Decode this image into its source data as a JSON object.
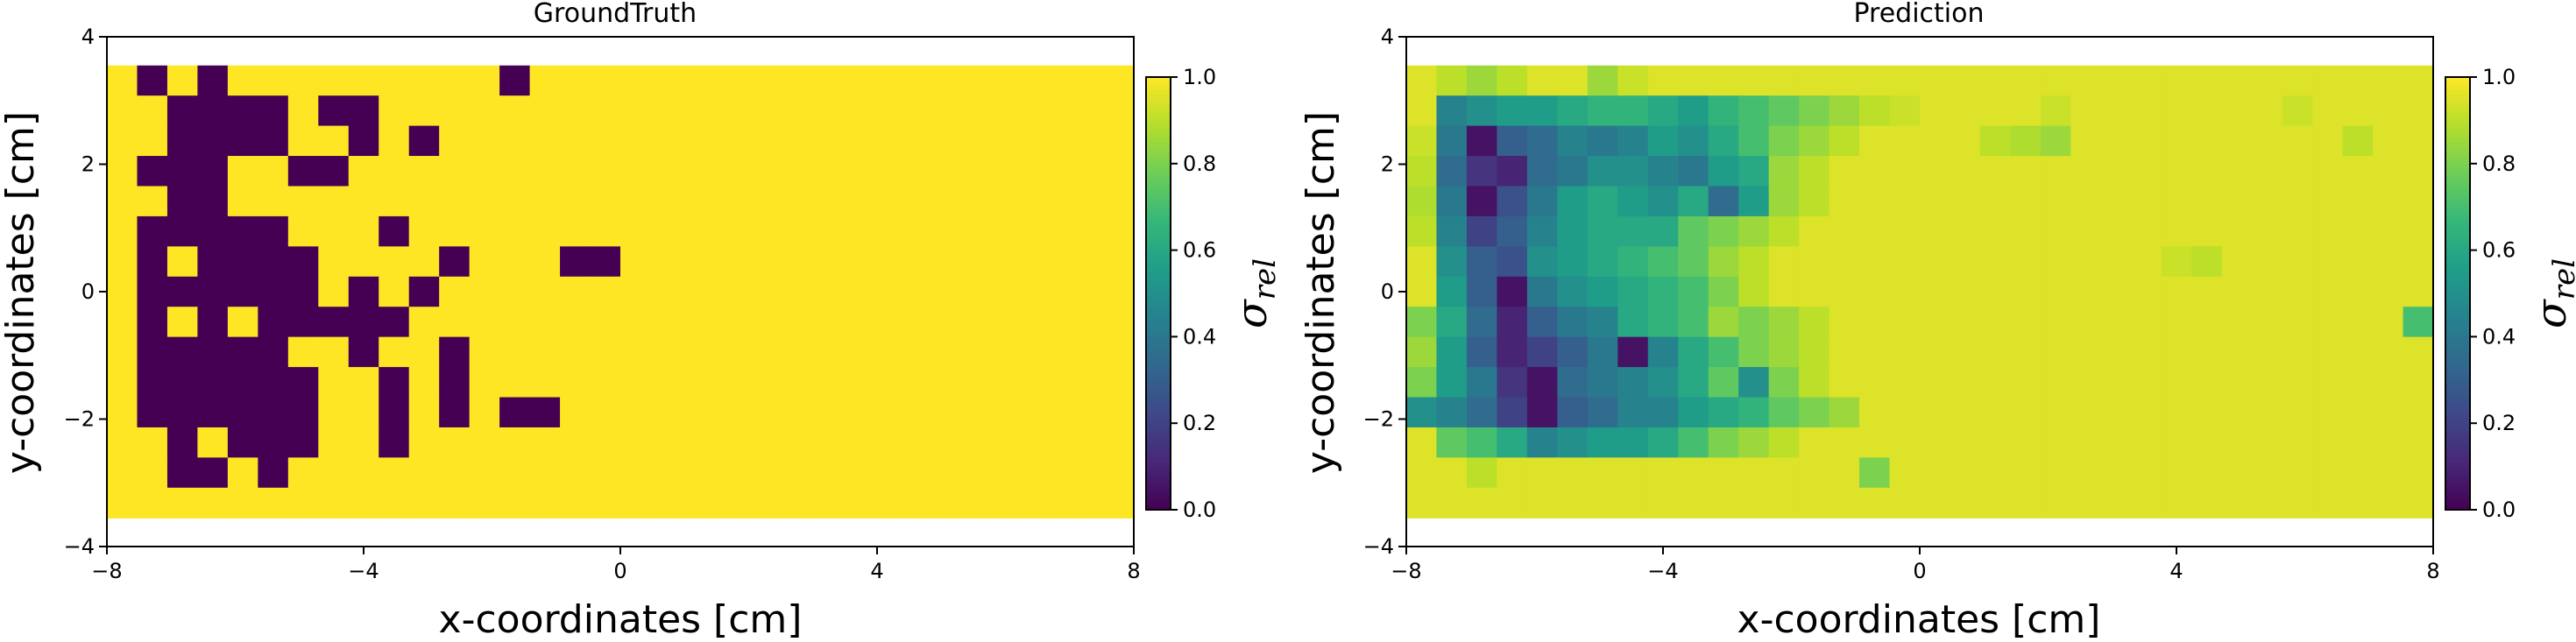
{
  "colors": {
    "viridis": [
      "#440154",
      "#482878",
      "#3e4989",
      "#31688e",
      "#26828e",
      "#1f9e89",
      "#35b779",
      "#6ece58",
      "#b5de2b",
      "#fde725"
    ],
    "axes": "#000000",
    "background": "#ffffff"
  },
  "chart_data": [
    {
      "type": "heatmap",
      "title": "GroundTruth",
      "xlabel": "x-coordinates [cm]",
      "ylabel": "y-coordinates [cm]",
      "xlim": [
        -8,
        8
      ],
      "ylim": [
        -4,
        4
      ],
      "xticks": [
        "−8",
        "−4",
        "0",
        "4",
        "8"
      ],
      "yticks": [
        "4",
        "2",
        "0",
        "−2",
        "−4"
      ],
      "colorbar": {
        "label": "σ",
        "label_sub": "rel",
        "range": [
          0,
          1
        ],
        "ticks": [
          "1.0",
          "0.8",
          "0.6",
          "0.4",
          "0.2",
          "0.0"
        ]
      },
      "grid": {
        "cols": 34,
        "rows": 15,
        "x_range": [
          -8,
          8
        ],
        "y_range": [
          -3.55,
          3.55
        ],
        "default": 1.0,
        "notes": "row 0 = top (y≈3.3), col 0 = left (x≈-7.76)"
      },
      "low_cells": [
        [
          0,
          1
        ],
        [
          0,
          3
        ],
        [
          0,
          13
        ],
        [
          1,
          2
        ],
        [
          1,
          3
        ],
        [
          1,
          4
        ],
        [
          1,
          5
        ],
        [
          1,
          7
        ],
        [
          1,
          8
        ],
        [
          2,
          2
        ],
        [
          2,
          3
        ],
        [
          2,
          4
        ],
        [
          2,
          5
        ],
        [
          2,
          8
        ],
        [
          2,
          10
        ],
        [
          3,
          1
        ],
        [
          3,
          2
        ],
        [
          3,
          3
        ],
        [
          3,
          6
        ],
        [
          3,
          7
        ],
        [
          4,
          2
        ],
        [
          4,
          3
        ],
        [
          5,
          1
        ],
        [
          5,
          2
        ],
        [
          5,
          3
        ],
        [
          5,
          4
        ],
        [
          5,
          5
        ],
        [
          5,
          9
        ],
        [
          6,
          1
        ],
        [
          6,
          3
        ],
        [
          6,
          4
        ],
        [
          6,
          5
        ],
        [
          6,
          6
        ],
        [
          6,
          11
        ],
        [
          6,
          15
        ],
        [
          6,
          16
        ],
        [
          7,
          1
        ],
        [
          7,
          2
        ],
        [
          7,
          3
        ],
        [
          7,
          4
        ],
        [
          7,
          5
        ],
        [
          7,
          6
        ],
        [
          7,
          8
        ],
        [
          7,
          10
        ],
        [
          8,
          1
        ],
        [
          8,
          3
        ],
        [
          8,
          5
        ],
        [
          8,
          6
        ],
        [
          8,
          7
        ],
        [
          8,
          8
        ],
        [
          8,
          9
        ],
        [
          9,
          1
        ],
        [
          9,
          2
        ],
        [
          9,
          3
        ],
        [
          9,
          4
        ],
        [
          9,
          5
        ],
        [
          9,
          8
        ],
        [
          9,
          11
        ],
        [
          10,
          1
        ],
        [
          10,
          2
        ],
        [
          10,
          3
        ],
        [
          10,
          4
        ],
        [
          10,
          5
        ],
        [
          10,
          6
        ],
        [
          10,
          9
        ],
        [
          10,
          11
        ],
        [
          11,
          1
        ],
        [
          11,
          2
        ],
        [
          11,
          3
        ],
        [
          11,
          4
        ],
        [
          11,
          5
        ],
        [
          11,
          6
        ],
        [
          11,
          9
        ],
        [
          11,
          11
        ],
        [
          11,
          13
        ],
        [
          11,
          14
        ],
        [
          12,
          2
        ],
        [
          12,
          4
        ],
        [
          12,
          5
        ],
        [
          12,
          6
        ],
        [
          12,
          9
        ],
        [
          13,
          2
        ],
        [
          13,
          3
        ],
        [
          13,
          5
        ]
      ]
    },
    {
      "type": "heatmap",
      "title": "Prediction",
      "xlabel": "x-coordinates [cm]",
      "ylabel": "y-coordinates [cm]",
      "xlim": [
        -8,
        8
      ],
      "ylim": [
        -4,
        4
      ],
      "xticks": [
        "−8",
        "−4",
        "0",
        "4",
        "8"
      ],
      "yticks": [
        "4",
        "2",
        "0",
        "−2",
        "−4"
      ],
      "colorbar": {
        "label": "σ",
        "label_sub": "rel",
        "range": [
          0,
          1
        ],
        "ticks": [
          "1.0",
          "0.8",
          "0.6",
          "0.4",
          "0.2",
          "0.0"
        ]
      },
      "grid": {
        "cols": 34,
        "rows": 15,
        "x_range": [
          -8,
          8
        ],
        "y_range": [
          -3.55,
          3.55
        ],
        "notes": "row 0 = top (y≈3.3), col 0 = left (x≈-7.76); values are approximate"
      },
      "values": [
        [
          0.95,
          0.9,
          0.85,
          0.9,
          0.95,
          0.95,
          0.85,
          0.92,
          0.95,
          0.95,
          0.95,
          0.95,
          0.95,
          0.95,
          0.95,
          0.95,
          0.95,
          0.95,
          0.95,
          0.95,
          0.95,
          0.95,
          0.95,
          0.95,
          0.95,
          0.95,
          0.95,
          0.95,
          0.95,
          0.95,
          0.95,
          0.95,
          0.95,
          0.95
        ],
        [
          0.95,
          0.45,
          0.5,
          0.55,
          0.55,
          0.6,
          0.65,
          0.65,
          0.6,
          0.55,
          0.65,
          0.7,
          0.75,
          0.8,
          0.85,
          0.9,
          0.92,
          0.95,
          0.95,
          0.95,
          0.95,
          0.92,
          0.95,
          0.95,
          0.95,
          0.95,
          0.95,
          0.95,
          0.95,
          0.92,
          0.95,
          0.95,
          0.95,
          0.95
        ],
        [
          0.92,
          0.4,
          0.05,
          0.3,
          0.35,
          0.45,
          0.4,
          0.45,
          0.55,
          0.5,
          0.6,
          0.7,
          0.8,
          0.85,
          0.9,
          0.95,
          0.95,
          0.95,
          0.95,
          0.9,
          0.88,
          0.85,
          0.95,
          0.95,
          0.95,
          0.95,
          0.95,
          0.95,
          0.95,
          0.95,
          0.95,
          0.9,
          0.95,
          0.95
        ],
        [
          0.9,
          0.35,
          0.15,
          0.1,
          0.35,
          0.4,
          0.5,
          0.5,
          0.45,
          0.4,
          0.55,
          0.6,
          0.85,
          0.9,
          0.95,
          0.95,
          0.95,
          0.95,
          0.95,
          0.95,
          0.95,
          0.95,
          0.95,
          0.95,
          0.95,
          0.95,
          0.95,
          0.95,
          0.95,
          0.95,
          0.95,
          0.95,
          0.95,
          0.95
        ],
        [
          0.88,
          0.4,
          0.05,
          0.25,
          0.4,
          0.55,
          0.6,
          0.55,
          0.5,
          0.6,
          0.35,
          0.55,
          0.85,
          0.9,
          0.95,
          0.95,
          0.95,
          0.95,
          0.95,
          0.95,
          0.95,
          0.95,
          0.95,
          0.95,
          0.95,
          0.95,
          0.95,
          0.95,
          0.95,
          0.95,
          0.95,
          0.95,
          0.95,
          0.95
        ],
        [
          0.9,
          0.45,
          0.2,
          0.3,
          0.45,
          0.55,
          0.6,
          0.6,
          0.6,
          0.75,
          0.8,
          0.85,
          0.9,
          0.95,
          0.95,
          0.95,
          0.95,
          0.95,
          0.95,
          0.95,
          0.95,
          0.95,
          0.95,
          0.95,
          0.95,
          0.95,
          0.95,
          0.95,
          0.95,
          0.95,
          0.95,
          0.95,
          0.95,
          0.95
        ],
        [
          0.95,
          0.5,
          0.3,
          0.25,
          0.5,
          0.55,
          0.6,
          0.65,
          0.7,
          0.75,
          0.85,
          0.9,
          0.95,
          0.95,
          0.95,
          0.95,
          0.95,
          0.95,
          0.95,
          0.95,
          0.95,
          0.95,
          0.95,
          0.95,
          0.95,
          0.92,
          0.9,
          0.95,
          0.95,
          0.95,
          0.95,
          0.95,
          0.95,
          0.95
        ],
        [
          0.95,
          0.55,
          0.3,
          0.05,
          0.4,
          0.5,
          0.55,
          0.6,
          0.65,
          0.7,
          0.8,
          0.9,
          0.95,
          0.95,
          0.95,
          0.95,
          0.95,
          0.95,
          0.95,
          0.95,
          0.95,
          0.95,
          0.95,
          0.95,
          0.95,
          0.95,
          0.95,
          0.95,
          0.95,
          0.95,
          0.95,
          0.95,
          0.95,
          0.95
        ],
        [
          0.8,
          0.6,
          0.35,
          0.1,
          0.3,
          0.4,
          0.45,
          0.6,
          0.65,
          0.7,
          0.85,
          0.8,
          0.85,
          0.9,
          0.95,
          0.95,
          0.95,
          0.95,
          0.95,
          0.95,
          0.95,
          0.95,
          0.95,
          0.95,
          0.95,
          0.95,
          0.95,
          0.95,
          0.95,
          0.95,
          0.95,
          0.95,
          0.95,
          0.7
        ],
        [
          0.85,
          0.55,
          0.3,
          0.1,
          0.2,
          0.3,
          0.4,
          0.05,
          0.45,
          0.6,
          0.7,
          0.8,
          0.85,
          0.9,
          0.95,
          0.95,
          0.95,
          0.95,
          0.95,
          0.95,
          0.95,
          0.95,
          0.95,
          0.95,
          0.95,
          0.95,
          0.95,
          0.95,
          0.95,
          0.95,
          0.95,
          0.95,
          0.95,
          0.95
        ],
        [
          0.8,
          0.55,
          0.4,
          0.15,
          0.05,
          0.35,
          0.4,
          0.45,
          0.5,
          0.6,
          0.75,
          0.5,
          0.8,
          0.9,
          0.95,
          0.95,
          0.95,
          0.95,
          0.95,
          0.95,
          0.95,
          0.95,
          0.95,
          0.95,
          0.95,
          0.95,
          0.95,
          0.95,
          0.95,
          0.95,
          0.95,
          0.95,
          0.95,
          0.95
        ],
        [
          0.5,
          0.45,
          0.35,
          0.2,
          0.05,
          0.3,
          0.35,
          0.45,
          0.45,
          0.55,
          0.6,
          0.65,
          0.75,
          0.8,
          0.85,
          0.95,
          0.95,
          0.95,
          0.95,
          0.95,
          0.95,
          0.95,
          0.95,
          0.95,
          0.95,
          0.95,
          0.95,
          0.95,
          0.95,
          0.95,
          0.95,
          0.95,
          0.95,
          0.95
        ],
        [
          0.95,
          0.75,
          0.7,
          0.6,
          0.45,
          0.5,
          0.55,
          0.55,
          0.6,
          0.7,
          0.8,
          0.85,
          0.9,
          0.95,
          0.95,
          0.95,
          0.95,
          0.95,
          0.95,
          0.95,
          0.95,
          0.95,
          0.95,
          0.95,
          0.95,
          0.95,
          0.95,
          0.95,
          0.95,
          0.95,
          0.95,
          0.95,
          0.95,
          0.95
        ],
        [
          0.95,
          0.95,
          0.9,
          0.95,
          0.95,
          0.95,
          0.95,
          0.95,
          0.95,
          0.95,
          0.95,
          0.95,
          0.95,
          0.95,
          0.95,
          0.8,
          0.95,
          0.95,
          0.95,
          0.95,
          0.95,
          0.95,
          0.95,
          0.95,
          0.95,
          0.95,
          0.95,
          0.95,
          0.95,
          0.95,
          0.95,
          0.95,
          0.95,
          0.95
        ],
        [
          0.95,
          0.95,
          0.95,
          0.95,
          0.95,
          0.95,
          0.95,
          0.95,
          0.95,
          0.95,
          0.95,
          0.95,
          0.95,
          0.95,
          0.95,
          0.95,
          0.95,
          0.95,
          0.95,
          0.95,
          0.95,
          0.95,
          0.95,
          0.95,
          0.95,
          0.95,
          0.95,
          0.95,
          0.95,
          0.95,
          0.95,
          0.95,
          0.95,
          0.95
        ]
      ]
    }
  ]
}
